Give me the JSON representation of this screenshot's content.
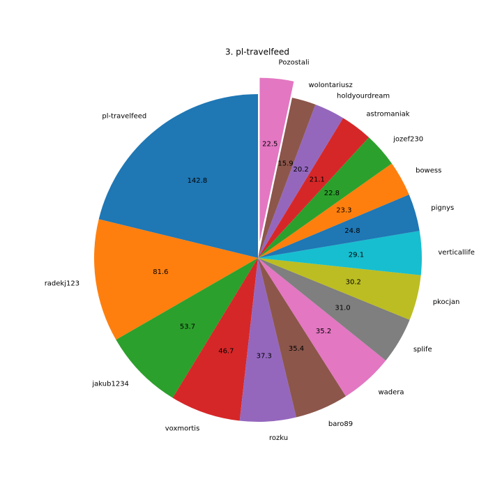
{
  "chart_data": {
    "type": "pie",
    "title": "3. pl-travelfeed",
    "categories": [
      "pl-travelfeed",
      "radekj123",
      "jakub1234",
      "voxmortis",
      "rozku",
      "baro89",
      "wadera",
      "splife",
      "pkocjan",
      "verticallife",
      "pignys",
      "bowess",
      "jozef230",
      "astromaniak",
      "holdyourdream",
      "wolontariusz",
      "Pozostali"
    ],
    "values": [
      142.8,
      81.6,
      53.7,
      46.7,
      37.3,
      35.4,
      35.2,
      31.0,
      30.2,
      29.1,
      24.8,
      23.3,
      22.8,
      21.1,
      20.2,
      15.9,
      22.5
    ],
    "value_labels": [
      "142.8",
      "81.6",
      "53.7",
      "46.7",
      "37.3",
      "35.4",
      "35.2",
      "31.0",
      "30.2",
      "29.1",
      "24.8",
      "23.3",
      "22.8",
      "21.1",
      "20.2",
      "15.9",
      "22.5"
    ],
    "colors": [
      "#1f77b4",
      "#ff7f0e",
      "#2ca02c",
      "#d62728",
      "#9467bd",
      "#8c564b",
      "#e377c2",
      "#7f7f7f",
      "#bcbd22",
      "#17becf",
      "#1f77b4",
      "#ff7f0e",
      "#2ca02c",
      "#d62728",
      "#9467bd",
      "#8c564b",
      "#e377c2"
    ],
    "explode": [
      0,
      0,
      0,
      0,
      0,
      0,
      0,
      0,
      0,
      0,
      0,
      0,
      0,
      0,
      0,
      0,
      0.1
    ],
    "start_angle": 90
  }
}
